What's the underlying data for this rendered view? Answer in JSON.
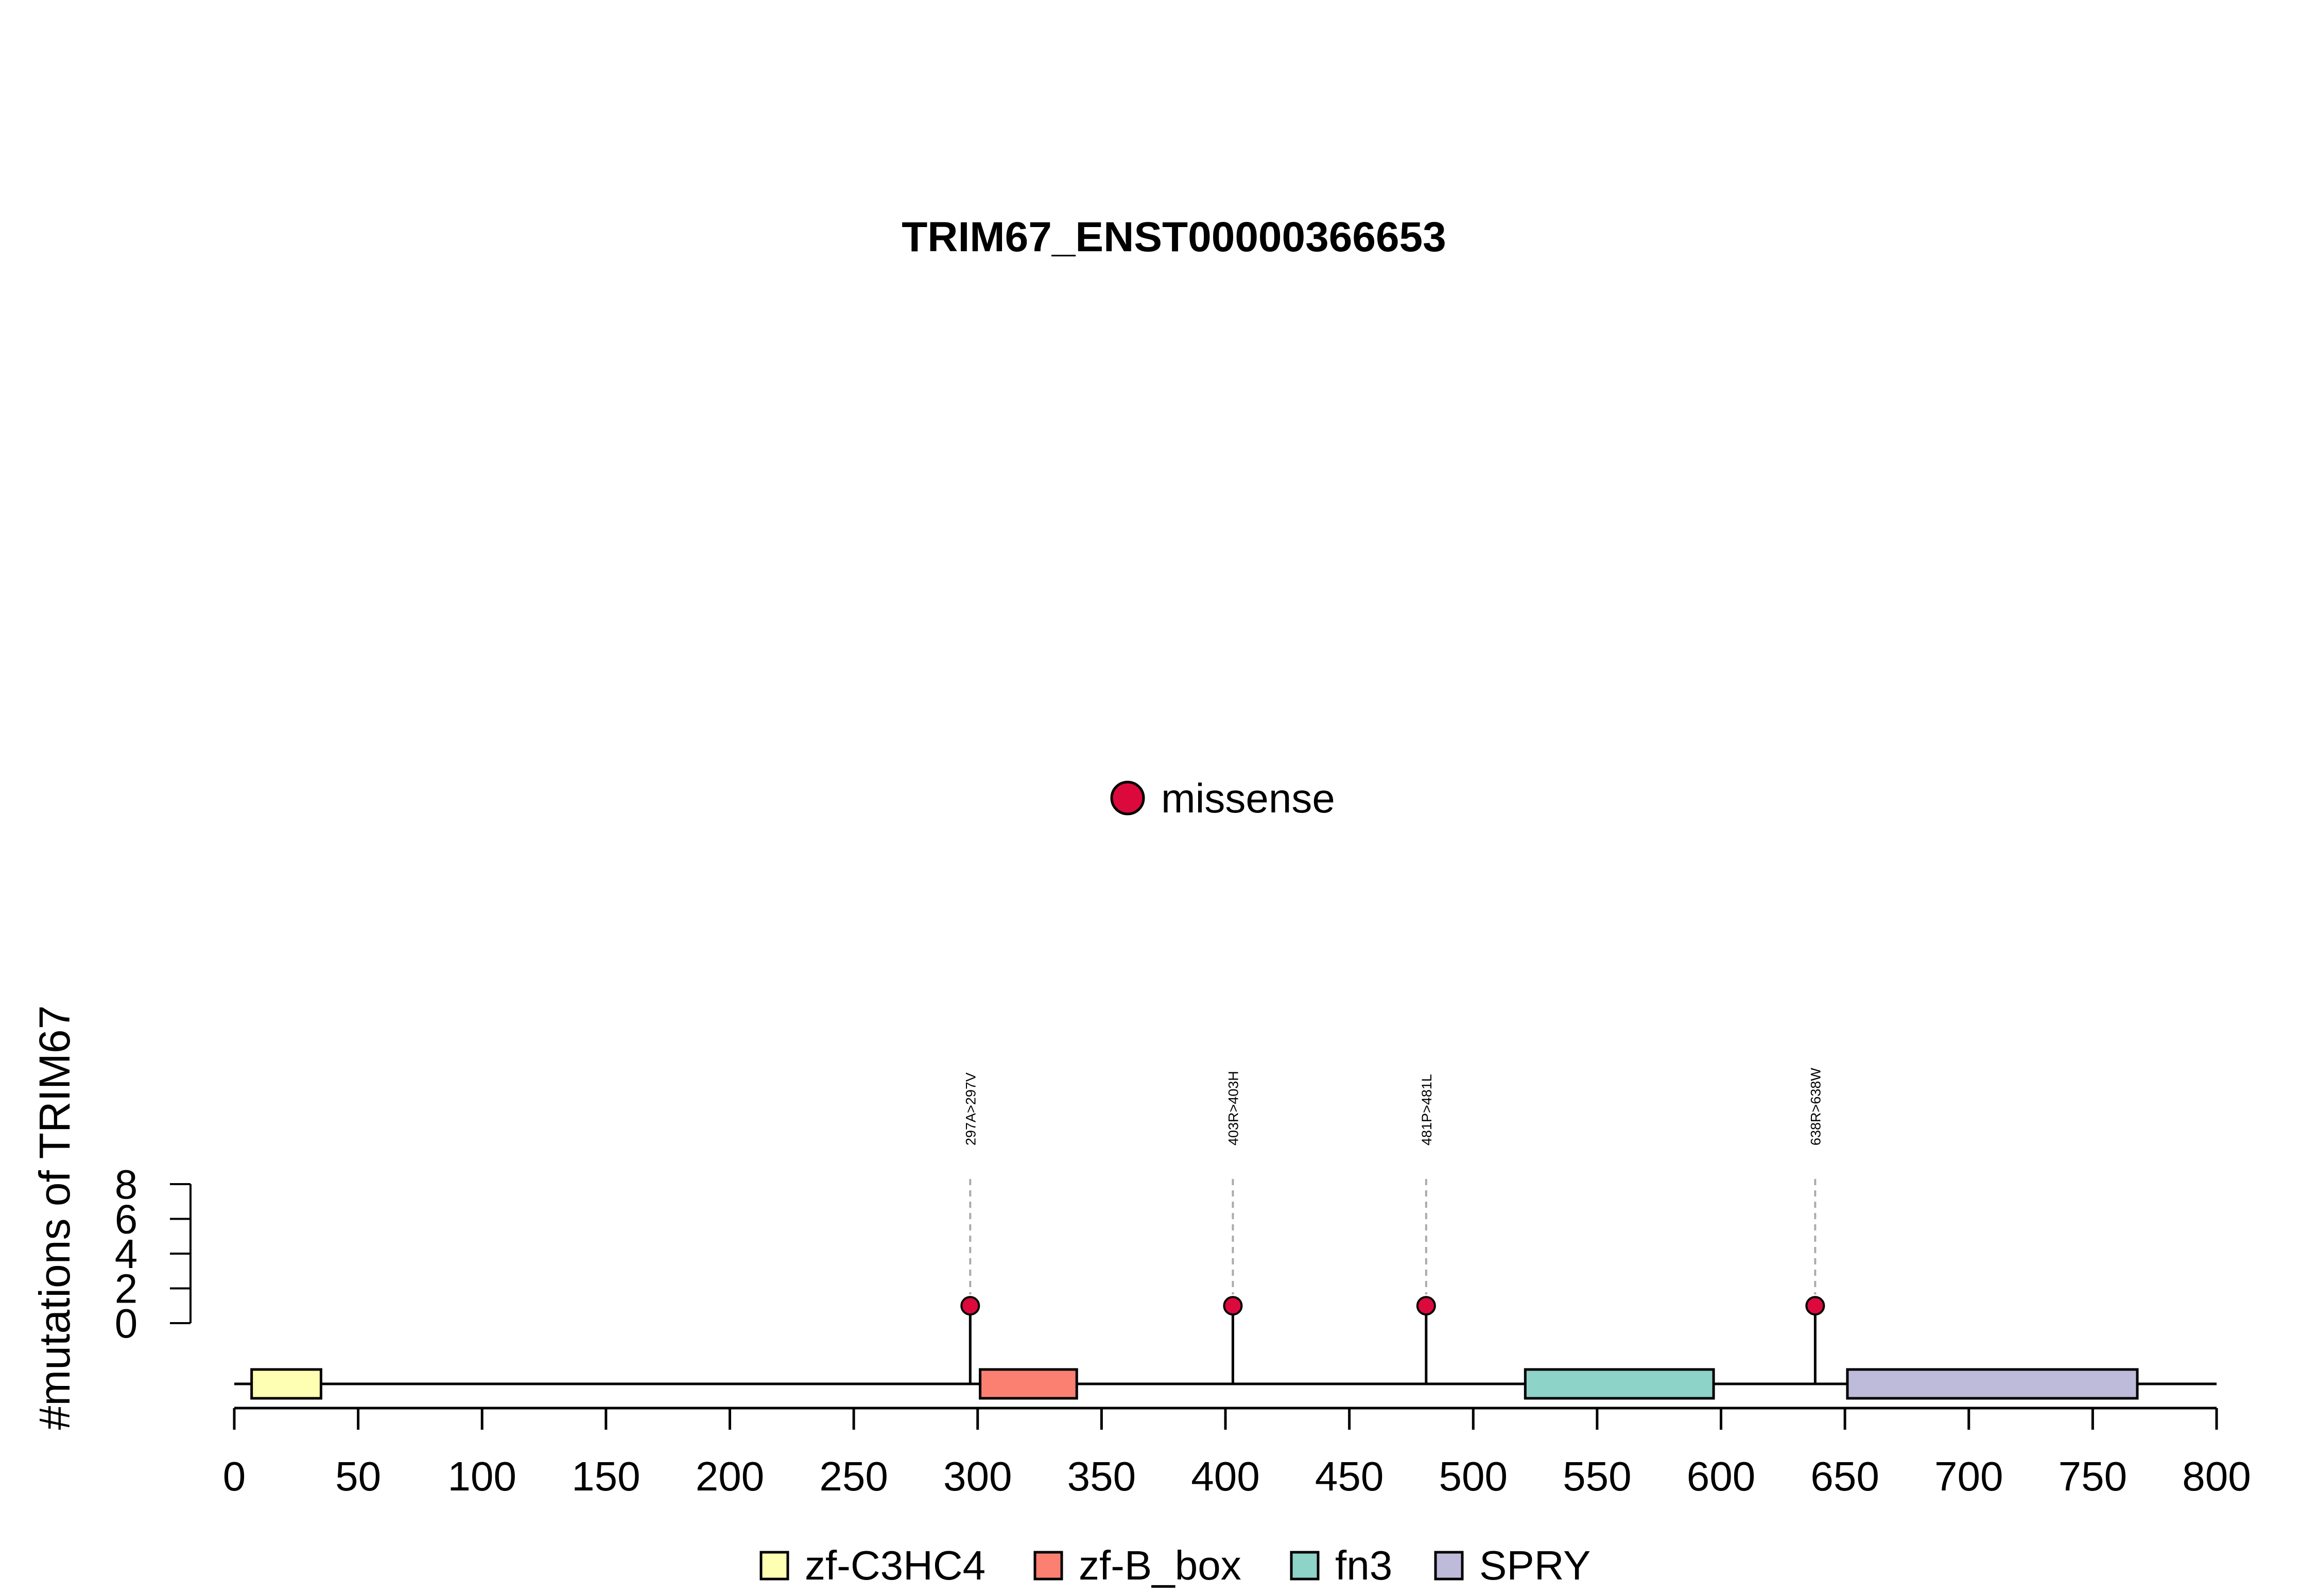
{
  "chart_data": {
    "type": "lollipop",
    "title": "TRIM67_ENST00000366653",
    "ylabel": "#mutations of TRIM67",
    "xlabel": "",
    "xlim": [
      0,
      800
    ],
    "x_ticks": [
      0,
      50,
      100,
      150,
      200,
      250,
      300,
      350,
      400,
      450,
      500,
      550,
      600,
      650,
      700,
      750,
      800
    ],
    "ylim": [
      0,
      8
    ],
    "y_ticks": [
      0,
      2,
      4,
      6,
      8
    ],
    "mutation_legend": [
      {
        "label": "missense",
        "color": "#DC0A3C"
      }
    ],
    "mutations": [
      {
        "position": 297,
        "count": 1,
        "type": "missense",
        "label": "297A>297V"
      },
      {
        "position": 403,
        "count": 1,
        "type": "missense",
        "label": "403R>403H"
      },
      {
        "position": 481,
        "count": 1,
        "type": "missense",
        "label": "481P>481L"
      },
      {
        "position": 638,
        "count": 1,
        "type": "missense",
        "label": "638R>638W"
      }
    ],
    "protein_length": 800,
    "domains": [
      {
        "name": "zf-C3HC4",
        "start": 7,
        "end": 35,
        "color": "#FFFFB3"
      },
      {
        "name": "zf-B_box",
        "start": 301,
        "end": 340,
        "color": "#FB8072"
      },
      {
        "name": "fn3",
        "start": 521,
        "end": 597,
        "color": "#8DD3C7"
      },
      {
        "name": "SPRY",
        "start": 651,
        "end": 768,
        "color": "#BEBADA"
      }
    ],
    "domain_legend": [
      {
        "label": "zf-C3HC4",
        "color": "#FFFFB3"
      },
      {
        "label": "zf-B_box",
        "color": "#FB8072"
      },
      {
        "label": "fn3",
        "color": "#8DD3C7"
      },
      {
        "label": "SPRY",
        "color": "#BEBADA"
      }
    ]
  }
}
